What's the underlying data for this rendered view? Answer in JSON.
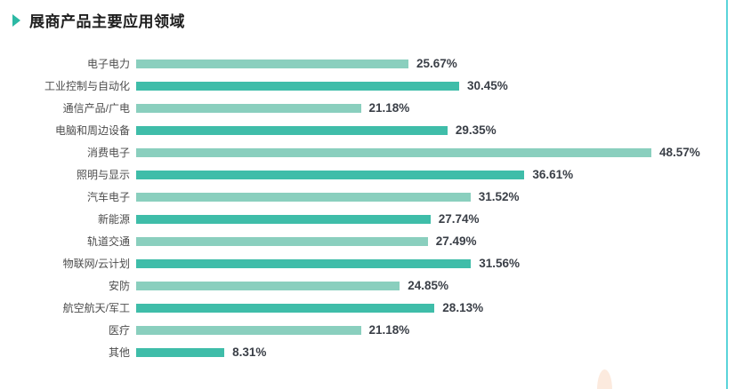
{
  "page": {
    "title": "展商产品主要应用领域"
  },
  "chart_data": {
    "type": "bar",
    "orientation": "horizontal",
    "title": "展商产品主要应用领域",
    "xlabel": "",
    "ylabel": "",
    "xlim": [
      0,
      50
    ],
    "grid": false,
    "legend": false,
    "value_label_format": "percent",
    "bar_color_alternation": [
      "#8acfbe",
      "#3fbda9"
    ],
    "categories": [
      "电子电力",
      "工业控制与自动化",
      "通信产品/广电",
      "电脑和周边设备",
      "消费电子",
      "照明与显示",
      "汽车电子",
      "新能源",
      "轨道交通",
      "物联网/云计划",
      "安防",
      "航空航天/军工",
      "医疗",
      "其他"
    ],
    "values": [
      25.67,
      30.45,
      21.18,
      29.35,
      48.57,
      36.61,
      31.52,
      27.74,
      27.49,
      31.56,
      24.85,
      28.13,
      21.18,
      8.31
    ],
    "value_labels": [
      "25.67%",
      "30.45%",
      "21.18%",
      "29.35%",
      "48.57%",
      "36.61%",
      "31.52%",
      "27.74%",
      "27.49%",
      "31.56%",
      "24.85%",
      "28.13%",
      "21.18%",
      "8.31%"
    ]
  },
  "decorations": {
    "title_marker_color": "#2cb9a4",
    "right_border_color": "#5ad4da",
    "bottom_shape_color": "#fceade"
  }
}
